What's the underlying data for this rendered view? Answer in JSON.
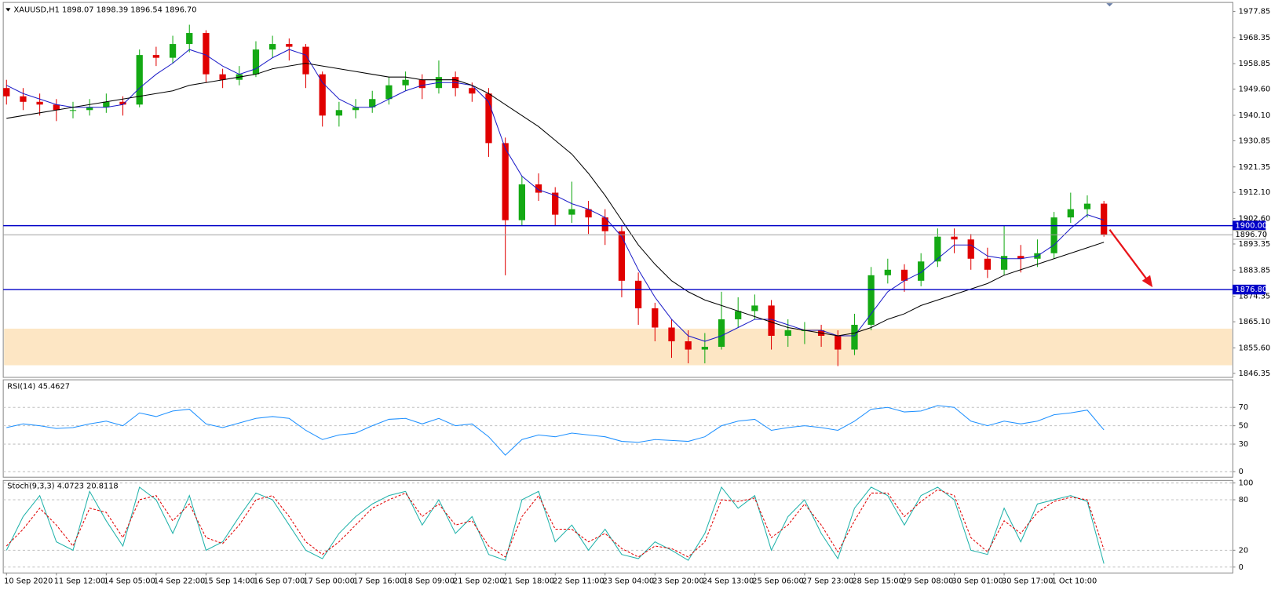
{
  "chart_data": [
    {
      "type": "candlestick",
      "title": "XAUUSD,H1  1898.07 1898.39 1896.54 1896.70",
      "categories": [
        "10 Sep 2020",
        null,
        null,
        "11 Sep 12:00",
        null,
        null,
        "14 Sep 05:00",
        null,
        null,
        "14 Sep 22:00",
        null,
        null,
        "15 Sep 14:00",
        null,
        null,
        "16 Sep 07:00",
        null,
        null,
        "17 Sep 00:00",
        null,
        null,
        "17 Sep 16:00",
        null,
        null,
        "18 Sep 09:00",
        null,
        null,
        "21 Sep 02:00",
        null,
        null,
        "21 Sep 18:00",
        null,
        null,
        "22 Sep 11:00",
        null,
        null,
        "23 Sep 04:00",
        null,
        null,
        "23 Sep 20:00",
        null,
        null,
        "24 Sep 13:00",
        null,
        null,
        "25 Sep 06:00",
        null,
        null,
        "27 Sep 23:00",
        null,
        null,
        "28 Sep 15:00",
        null,
        null,
        "29 Sep 08:00",
        null,
        null,
        "30 Sep 01:00",
        null,
        null,
        "30 Sep 17:00",
        null,
        null,
        "1 Oct 10:00",
        null,
        null,
        null
      ],
      "open": [
        1950,
        1947,
        1945,
        1944,
        1942,
        1942,
        1943,
        1945,
        1944,
        1962,
        1961,
        1966,
        1970,
        1955,
        1953,
        1955,
        1964,
        1966,
        1965,
        1955,
        1940,
        1942,
        1943,
        1946,
        1951,
        1953,
        1950,
        1954,
        1950,
        1948,
        1930,
        1902,
        1915,
        1912,
        1904,
        1906,
        1903,
        1898,
        1880,
        1870,
        1863,
        1858,
        1855,
        1856,
        1866,
        1869,
        1871,
        1860,
        1862,
        1862,
        1860,
        1855,
        1864,
        1882,
        1884,
        1880,
        1887,
        1896,
        1895,
        1888,
        1884,
        1889,
        1888,
        1890,
        1903,
        1906,
        1908
      ],
      "high": [
        1953,
        1950,
        1948,
        1946,
        1945,
        1946,
        1948,
        1947,
        1964,
        1965,
        1969,
        1973,
        1971,
        1957,
        1958,
        1967,
        1969,
        1968,
        1966,
        1956,
        1945,
        1946,
        1949,
        1954,
        1956,
        1955,
        1960,
        1956,
        1952,
        1950,
        1932,
        1918,
        1919,
        1914,
        1916,
        1909,
        1906,
        1900,
        1883,
        1872,
        1866,
        1862,
        1861,
        1876,
        1874,
        1875,
        1873,
        1866,
        1865,
        1864,
        1862,
        1868,
        1885,
        1888,
        1886,
        1890,
        1899,
        1899,
        1897,
        1892,
        1900,
        1893,
        1895,
        1905,
        1912,
        1911,
        1909
      ],
      "low": [
        1944,
        1942,
        1940,
        1938,
        1939,
        1940,
        1941,
        1940,
        1943,
        1958,
        1959,
        1963,
        1952,
        1950,
        1951,
        1954,
        1961,
        1960,
        1950,
        1936,
        1936,
        1939,
        1941,
        1944,
        1949,
        1946,
        1948,
        1947,
        1945,
        1925,
        1882,
        1900,
        1909,
        1900,
        1901,
        1897,
        1893,
        1874,
        1864,
        1858,
        1852,
        1850,
        1850,
        1855,
        1863,
        1866,
        1855,
        1856,
        1857,
        1856,
        1849,
        1853,
        1862,
        1879,
        1876,
        1878,
        1885,
        1890,
        1884,
        1881,
        1882,
        1883,
        1885,
        1888,
        1901,
        1903,
        1896
      ],
      "close": [
        1947,
        1945,
        1944,
        1942,
        1942,
        1943,
        1945,
        1944,
        1962,
        1961,
        1966,
        1970,
        1955,
        1953,
        1955,
        1964,
        1966,
        1965,
        1955,
        1940,
        1942,
        1943,
        1946,
        1951,
        1953,
        1950,
        1954,
        1950,
        1948,
        1930,
        1902,
        1915,
        1912,
        1904,
        1906,
        1903,
        1898,
        1880,
        1870,
        1863,
        1858,
        1855,
        1856,
        1866,
        1869,
        1871,
        1860,
        1862,
        1862,
        1860,
        1855,
        1864,
        1882,
        1884,
        1880,
        1887,
        1896,
        1895,
        1888,
        1884,
        1889,
        1888,
        1890,
        1903,
        1906,
        1908,
        1896.7
      ],
      "up_color": "#14a914",
      "down_color": "#e00000",
      "series": [
        {
          "color": "#1c1cc8",
          "values": [
            1951,
            1948,
            1946,
            1944,
            1943,
            1943,
            1943,
            1944,
            1950,
            1955,
            1959,
            1964,
            1962,
            1958,
            1955,
            1957,
            1961,
            1964,
            1962,
            1952,
            1946,
            1943,
            1943,
            1946,
            1949,
            1951,
            1952,
            1952,
            1951,
            1945,
            1928,
            1918,
            1913,
            1911,
            1908,
            1906,
            1903,
            1896,
            1884,
            1874,
            1866,
            1860,
            1858,
            1860,
            1863,
            1866,
            1866,
            1864,
            1862,
            1862,
            1860,
            1860,
            1868,
            1876,
            1880,
            1883,
            1888,
            1893,
            1893,
            1889,
            1888,
            1888,
            1889,
            1893,
            1899,
            1904,
            1902
          ]
        },
        {
          "color": "#000000",
          "values": [
            1939,
            1940,
            1941,
            1942,
            1943,
            1944,
            1945,
            1946,
            1947,
            1948,
            1949,
            1951,
            1952,
            1953,
            1954,
            1955,
            1957,
            1958,
            1959,
            1958,
            1957,
            1956,
            1955,
            1954,
            1954,
            1953,
            1953,
            1953,
            1951,
            1948,
            1944,
            1940,
            1936,
            1931,
            1926,
            1919,
            1911,
            1902,
            1893,
            1886,
            1880,
            1876,
            1873,
            1871,
            1869,
            1867,
            1865,
            1863,
            1862,
            1861,
            1860,
            1861,
            1863,
            1866,
            1868,
            1871,
            1873,
            1875,
            1877,
            1879,
            1882,
            1884,
            1886,
            1888,
            1890,
            1892,
            1894
          ]
        }
      ],
      "zone": [
        1849.3,
        1862.6
      ],
      "zone_color": "#fde6c4",
      "levels": [
        {
          "value": 1900,
          "label": "1900.00",
          "color": "#0000c8"
        },
        {
          "value": 1876.8,
          "label": "1876.80",
          "color": "#0000c8"
        }
      ],
      "current": {
        "value": 1896.7,
        "label": "1896.70",
        "color": "#a0a0a0"
      },
      "ylim": [
        1844.9,
        1981.1
      ],
      "yticks": [
        1977.85,
        1968.35,
        1958.85,
        {
          "value": 1949.6,
          "label": "1949.60"
        },
        {
          "value": 1940.1,
          "label": "1940.10"
        },
        1930.85,
        1921.35,
        {
          "value": 1912.1,
          "label": "1912.10"
        },
        {
          "value": 1902.6,
          "label": "1902.60"
        },
        1893.35,
        1883.85,
        1874.35,
        {
          "value": 1865.1,
          "label": "1865.10"
        },
        {
          "value": 1855.6,
          "label": "1855.60"
        },
        1846.35
      ]
    },
    {
      "type": "line",
      "title": "RSI(14) 45.4627",
      "series": [
        {
          "color": "#1e90ff",
          "values": [
            48,
            52,
            50,
            47,
            48,
            52,
            55,
            50,
            64,
            60,
            66,
            68,
            52,
            48,
            53,
            58,
            60,
            58,
            45,
            35,
            40,
            42,
            50,
            57,
            58,
            52,
            58,
            50,
            52,
            38,
            18,
            35,
            40,
            38,
            42,
            40,
            38,
            33,
            32,
            35,
            34,
            33,
            38,
            50,
            55,
            57,
            45,
            48,
            50,
            48,
            45,
            55,
            68,
            70,
            65,
            66,
            72,
            70,
            55,
            50,
            55,
            52,
            55,
            62,
            64,
            67,
            45.46
          ]
        }
      ],
      "ylim": [
        -6,
        100
      ],
      "yticks": [
        70,
        50,
        30,
        0
      ],
      "grid": true
    },
    {
      "type": "line",
      "title": "Stoch(9,3,3) 4.0723 20.8118",
      "series": [
        {
          "color": "#20b2aa",
          "values": [
            20,
            60,
            85,
            30,
            20,
            90,
            55,
            25,
            95,
            80,
            40,
            85,
            20,
            30,
            60,
            88,
            80,
            50,
            20,
            10,
            40,
            60,
            75,
            85,
            90,
            50,
            80,
            40,
            60,
            15,
            8,
            80,
            90,
            30,
            50,
            20,
            45,
            15,
            10,
            30,
            20,
            8,
            40,
            95,
            70,
            85,
            20,
            60,
            80,
            40,
            10,
            70,
            95,
            85,
            50,
            85,
            95,
            80,
            20,
            15,
            70,
            30,
            75,
            80,
            85,
            78,
            4.07
          ]
        },
        {
          "color": "#e00000",
          "style": "dashed",
          "values": [
            25,
            45,
            70,
            50,
            25,
            70,
            65,
            35,
            80,
            85,
            55,
            75,
            35,
            28,
            50,
            80,
            85,
            60,
            30,
            15,
            30,
            50,
            70,
            80,
            88,
            60,
            75,
            50,
            55,
            25,
            12,
            60,
            85,
            45,
            45,
            30,
            40,
            22,
            12,
            25,
            22,
            12,
            30,
            80,
            78,
            82,
            35,
            50,
            75,
            50,
            18,
            55,
            88,
            88,
            60,
            78,
            92,
            85,
            35,
            18,
            55,
            40,
            65,
            78,
            83,
            80,
            20.81
          ]
        }
      ],
      "ylim": [
        -7,
        103
      ],
      "yticks": [
        100,
        80,
        20,
        0
      ],
      "grid": true
    }
  ]
}
